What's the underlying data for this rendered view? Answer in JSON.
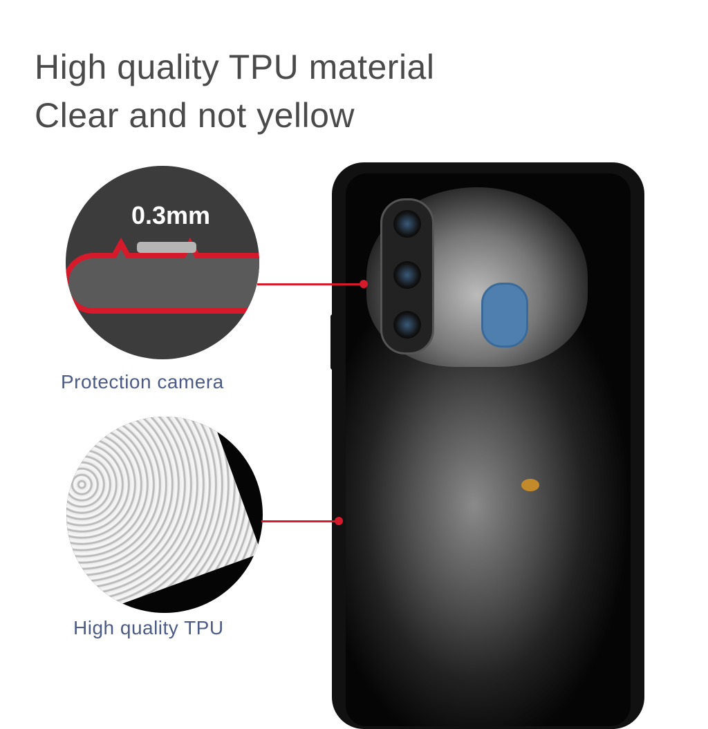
{
  "headline": {
    "line1": "High quality TPU material",
    "line2": "Clear and not yellow"
  },
  "callouts": [
    {
      "measurement": "0.3mm",
      "caption": "Protection camera"
    },
    {
      "caption": "High quality TPU"
    }
  ],
  "colors": {
    "accent": "#d41a2b",
    "caption": "#4c5a86",
    "headline": "#4a4a4a",
    "case": "#111111"
  }
}
